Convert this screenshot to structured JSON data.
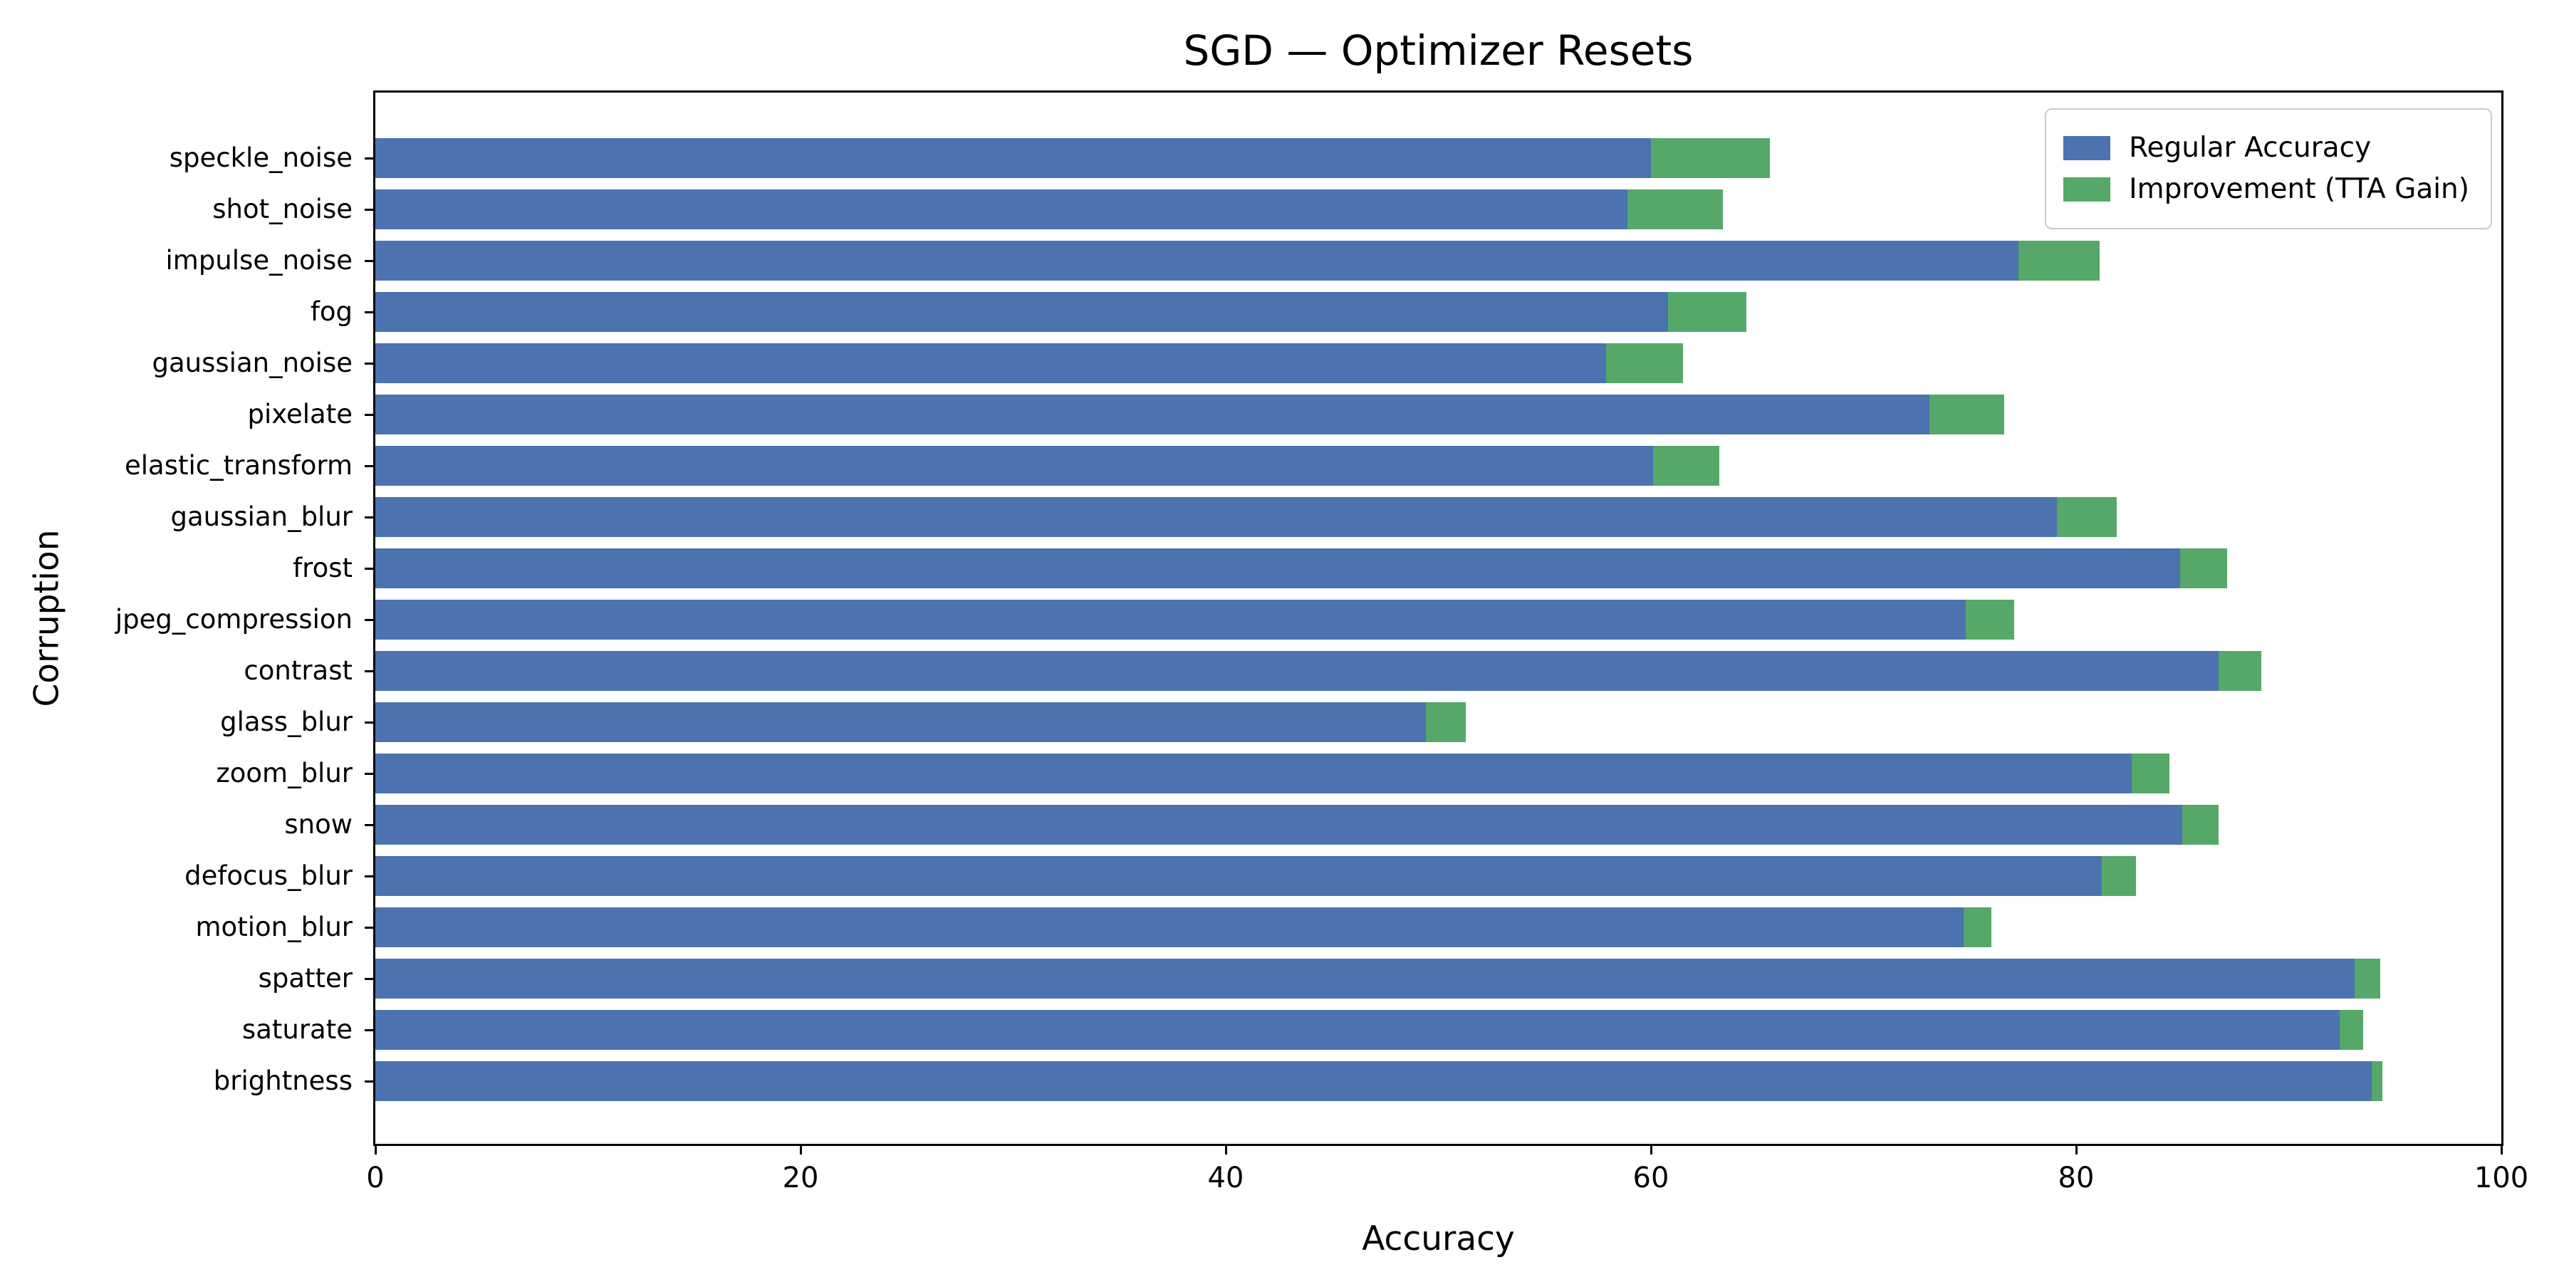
{
  "figure": {
    "title": "SGD — Optimizer Resets",
    "xlabel": "Accuracy",
    "ylabel": "Corruption"
  },
  "legend": {
    "items": [
      {
        "name": "regular-accuracy",
        "label": "Regular Accuracy",
        "color": "#4C72B0"
      },
      {
        "name": "improvement-tta-gain",
        "label": "Improvement (TTA Gain)",
        "color": "#55A868"
      }
    ]
  },
  "chart_data": {
    "type": "bar",
    "orientation": "horizontal",
    "stacked": true,
    "title": "SGD — Optimizer Resets",
    "xlabel": "Accuracy",
    "ylabel": "Corruption",
    "xlim": [
      0,
      100
    ],
    "xticks": [
      0,
      20,
      40,
      60,
      80,
      100
    ],
    "grid": false,
    "legend_position": "upper right",
    "categories": [
      "speckle_noise",
      "shot_noise",
      "impulse_noise",
      "fog",
      "gaussian_noise",
      "pixelate",
      "elastic_transform",
      "gaussian_blur",
      "frost",
      "jpeg_compression",
      "contrast",
      "glass_blur",
      "zoom_blur",
      "snow",
      "defocus_blur",
      "motion_blur",
      "spatter",
      "saturate",
      "brightness"
    ],
    "series": [
      {
        "name": "Regular Accuracy",
        "color": "#4C72B0",
        "values": [
          60.0,
          58.9,
          77.3,
          60.8,
          57.9,
          73.1,
          60.1,
          79.1,
          84.9,
          74.8,
          86.7,
          49.4,
          82.6,
          85.0,
          81.2,
          74.7,
          93.1,
          92.4,
          93.9
        ]
      },
      {
        "name": "Improvement (TTA Gain)",
        "color": "#55A868",
        "values": [
          5.6,
          4.5,
          3.8,
          3.7,
          3.6,
          3.5,
          3.1,
          2.8,
          2.2,
          2.3,
          2.0,
          1.9,
          1.8,
          1.7,
          1.6,
          1.3,
          1.2,
          1.1,
          0.5
        ]
      }
    ]
  }
}
